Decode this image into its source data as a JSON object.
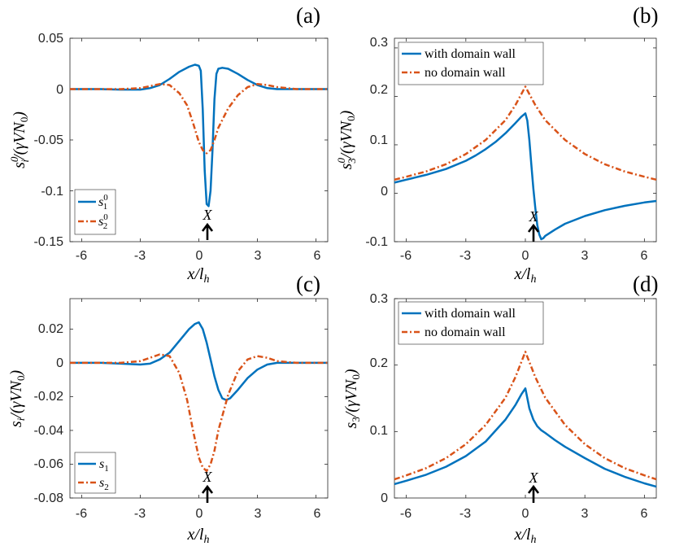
{
  "colors": {
    "series1": "#0072BD",
    "series2": "#D95319",
    "axis": "#262626"
  },
  "chart_data": [
    {
      "panel": "(a)",
      "type": "line",
      "xlabel": "x/l_h",
      "ylabel": "s_i^0/(γVN_0)",
      "xlim": [
        -6.6,
        6.6
      ],
      "ylim": [
        -0.15,
        0.05
      ],
      "xticks": [
        -6,
        -3,
        0,
        3,
        6
      ],
      "xtick_labels": [
        "-6",
        "-3",
        "0",
        "3",
        "6"
      ],
      "yticks": [
        -0.15,
        -0.1,
        -0.05,
        0,
        0.05
      ],
      "ytick_labels": [
        "-0.15",
        "-0.1",
        "-0.05",
        "0",
        "0.05"
      ],
      "legend_position": "bottom-left",
      "series": [
        {
          "name": "s_1^0",
          "style": "solid",
          "color": "#0072BD",
          "x": [
            -6.6,
            -5,
            -4,
            -3,
            -2.5,
            -2,
            -1.5,
            -1,
            -0.5,
            -0.2,
            0,
            0.1,
            0.2,
            0.3,
            0.4,
            0.5,
            0.6,
            0.7,
            0.8,
            0.9,
            1,
            1.2,
            1.5,
            2,
            2.5,
            3,
            3.5,
            4,
            5,
            6.6
          ],
          "y": [
            0,
            0,
            -0.0005,
            -0.0005,
            0.001,
            0.004,
            0.01,
            0.017,
            0.022,
            0.024,
            0.023,
            0.018,
            -0.02,
            -0.08,
            -0.113,
            -0.115,
            -0.1,
            -0.06,
            -0.01,
            0.015,
            0.02,
            0.021,
            0.02,
            0.015,
            0.009,
            0.004,
            0.001,
            0,
            0,
            0
          ]
        },
        {
          "name": "s_2^0",
          "style": "dashdot",
          "color": "#D95319",
          "x": [
            -6.6,
            -5,
            -4,
            -3,
            -2.5,
            -2,
            -1.5,
            -1,
            -0.6,
            -0.3,
            0,
            0.2,
            0.4,
            0.6,
            0.8,
            1,
            1.5,
            2,
            2.5,
            3,
            3.5,
            4,
            5,
            6.6
          ],
          "y": [
            0,
            0,
            0,
            0.001,
            0.003,
            0.005,
            0.004,
            -0.004,
            -0.016,
            -0.033,
            -0.052,
            -0.06,
            -0.063,
            -0.06,
            -0.05,
            -0.038,
            -0.019,
            -0.006,
            0.002,
            0.005,
            0.004,
            0.002,
            0,
            0
          ]
        }
      ]
    },
    {
      "panel": "(b)",
      "type": "line",
      "xlabel": "x/l_h",
      "ylabel": "s_3^0/(γVN_0)",
      "xlim": [
        -6.6,
        6.6
      ],
      "ylim": [
        -0.1,
        0.32
      ],
      "xticks": [
        -6,
        -3,
        0,
        3,
        6
      ],
      "xtick_labels": [
        "-6",
        "-3",
        "0",
        "3",
        "6"
      ],
      "yticks": [
        -0.1,
        0,
        0.1,
        0.2,
        0.3
      ],
      "ytick_labels": [
        "-0.1",
        "0",
        "0.1",
        "0.2",
        "0.3"
      ],
      "legend_position": "top-left",
      "series": [
        {
          "name": "with domain wall",
          "style": "solid",
          "color": "#0072BD",
          "x": [
            -6.6,
            -6,
            -5,
            -4,
            -3,
            -2.5,
            -2,
            -1.5,
            -1,
            -0.5,
            -0.2,
            0,
            0.1,
            0.2,
            0.3,
            0.4,
            0.5,
            0.6,
            0.7,
            0.8,
            0.9,
            1,
            1.5,
            2,
            3,
            4,
            5,
            6,
            6.6
          ],
          "y": [
            0.022,
            0.028,
            0.038,
            0.05,
            0.067,
            0.078,
            0.091,
            0.106,
            0.124,
            0.145,
            0.158,
            0.165,
            0.15,
            0.11,
            0.06,
            0.01,
            -0.03,
            -0.065,
            -0.085,
            -0.095,
            -0.093,
            -0.088,
            -0.075,
            -0.063,
            -0.047,
            -0.035,
            -0.026,
            -0.019,
            -0.016
          ]
        },
        {
          "name": "no domain wall",
          "style": "dashdot",
          "color": "#D95319",
          "x": [
            -6.6,
            -6,
            -5,
            -4,
            -3,
            -2,
            -1,
            -0.5,
            0,
            0.5,
            1,
            2,
            3,
            4,
            5,
            6,
            6.6
          ],
          "y": [
            0.028,
            0.034,
            0.045,
            0.06,
            0.081,
            0.11,
            0.151,
            0.182,
            0.22,
            0.182,
            0.151,
            0.11,
            0.081,
            0.06,
            0.045,
            0.034,
            0.028
          ]
        }
      ]
    },
    {
      "panel": "(c)",
      "type": "line",
      "xlabel": "x/l_h",
      "ylabel": "s_i/(γVN_0)",
      "xlim": [
        -6.6,
        6.6
      ],
      "ylim": [
        -0.08,
        0.038
      ],
      "xticks": [
        -6,
        -3,
        0,
        3,
        6
      ],
      "xtick_labels": [
        "-6",
        "-3",
        "0",
        "3",
        "6"
      ],
      "yticks": [
        -0.08,
        -0.06,
        -0.04,
        -0.02,
        0,
        0.02
      ],
      "ytick_labels": [
        "-0.08",
        "-0.06",
        "-0.04",
        "-0.02",
        "0",
        "0.02"
      ],
      "legend_position": "bottom-left",
      "series": [
        {
          "name": "s_1",
          "style": "solid",
          "color": "#0072BD",
          "x": [
            -6.6,
            -5,
            -4,
            -3,
            -2.5,
            -2,
            -1.5,
            -1,
            -0.5,
            -0.2,
            0,
            0.2,
            0.4,
            0.6,
            0.8,
            1,
            1.2,
            1.4,
            1.6,
            2,
            2.5,
            3,
            3.5,
            4,
            5,
            6.6
          ],
          "y": [
            0,
            0,
            -0.0005,
            -0.001,
            -0.0005,
            0.002,
            0.006,
            0.013,
            0.02,
            0.023,
            0.024,
            0.02,
            0.012,
            0.002,
            -0.008,
            -0.016,
            -0.021,
            -0.022,
            -0.021,
            -0.016,
            -0.009,
            -0.004,
            -0.001,
            0,
            0,
            0
          ]
        },
        {
          "name": "s_2",
          "style": "dashdot",
          "color": "#D95319",
          "x": [
            -6.6,
            -5,
            -4,
            -3,
            -2.5,
            -2,
            -1.5,
            -1,
            -0.6,
            -0.3,
            0,
            0.2,
            0.4,
            0.6,
            0.8,
            1,
            1.5,
            2,
            2.5,
            3,
            3.5,
            4,
            5,
            6.6
          ],
          "y": [
            0,
            0,
            0,
            0.001,
            0.003,
            0.005,
            0.004,
            -0.006,
            -0.022,
            -0.04,
            -0.056,
            -0.062,
            -0.064,
            -0.06,
            -0.052,
            -0.04,
            -0.019,
            -0.005,
            0.002,
            0.004,
            0.003,
            0.001,
            0,
            0
          ]
        }
      ]
    },
    {
      "panel": "(d)",
      "type": "line",
      "xlabel": "x/l_h",
      "ylabel": "s_3/(γVN_0)",
      "xlim": [
        -6.6,
        6.6
      ],
      "ylim": [
        0,
        0.3
      ],
      "xticks": [
        -6,
        -3,
        0,
        3,
        6
      ],
      "xtick_labels": [
        "-6",
        "-3",
        "0",
        "3",
        "6"
      ],
      "yticks": [
        0,
        0.1,
        0.2,
        0.3
      ],
      "ytick_labels": [
        "0",
        "0.1",
        "0.2",
        "0.3"
      ],
      "legend_position": "top-left",
      "series": [
        {
          "name": "with domain wall",
          "style": "solid",
          "color": "#0072BD",
          "x": [
            -6.6,
            -6,
            -5,
            -4,
            -3,
            -2,
            -1,
            -0.5,
            -0.2,
            0,
            0.2,
            0.4,
            0.6,
            0.8,
            1,
            1.5,
            2,
            3,
            4,
            5,
            6,
            6.6
          ],
          "y": [
            0.021,
            0.026,
            0.035,
            0.047,
            0.063,
            0.085,
            0.118,
            0.14,
            0.156,
            0.165,
            0.135,
            0.118,
            0.108,
            0.102,
            0.098,
            0.087,
            0.077,
            0.06,
            0.044,
            0.032,
            0.022,
            0.017
          ]
        },
        {
          "name": "no domain wall",
          "style": "dashdot",
          "color": "#D95319",
          "x": [
            -6.6,
            -6,
            -5,
            -4,
            -3,
            -2,
            -1,
            -0.5,
            0,
            0.5,
            1,
            2,
            3,
            4,
            5,
            6,
            6.6
          ],
          "y": [
            0.028,
            0.034,
            0.045,
            0.06,
            0.081,
            0.11,
            0.151,
            0.182,
            0.22,
            0.182,
            0.151,
            0.11,
            0.081,
            0.06,
            0.045,
            0.034,
            0.028
          ]
        }
      ]
    }
  ],
  "marker": {
    "label": "X",
    "x": 0.3
  }
}
